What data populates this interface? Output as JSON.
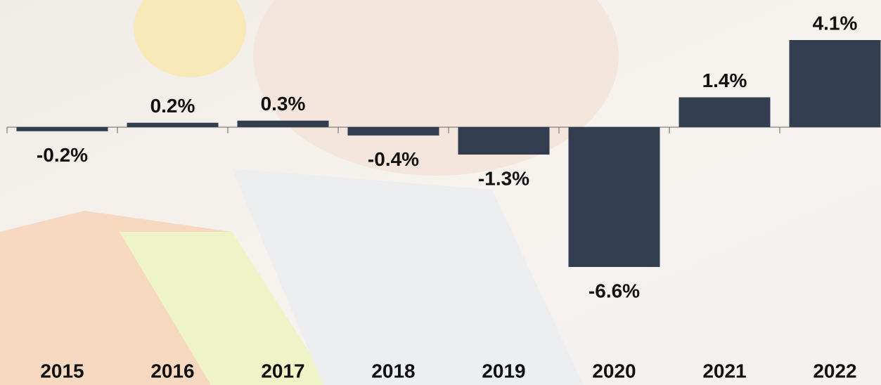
{
  "chart_data": {
    "type": "bar",
    "categories": [
      "2015",
      "2016",
      "2017",
      "2018",
      "2019",
      "2020",
      "2021",
      "2022"
    ],
    "values": [
      -0.2,
      0.2,
      0.3,
      -0.4,
      -1.3,
      -6.6,
      1.4,
      4.1
    ],
    "value_labels": [
      "-0.2%",
      "0.2%",
      "0.3%",
      "-0.4%",
      "-1.3%",
      "-6.6%",
      "1.4%",
      "4.1%"
    ],
    "color": "#333d50"
  }
}
